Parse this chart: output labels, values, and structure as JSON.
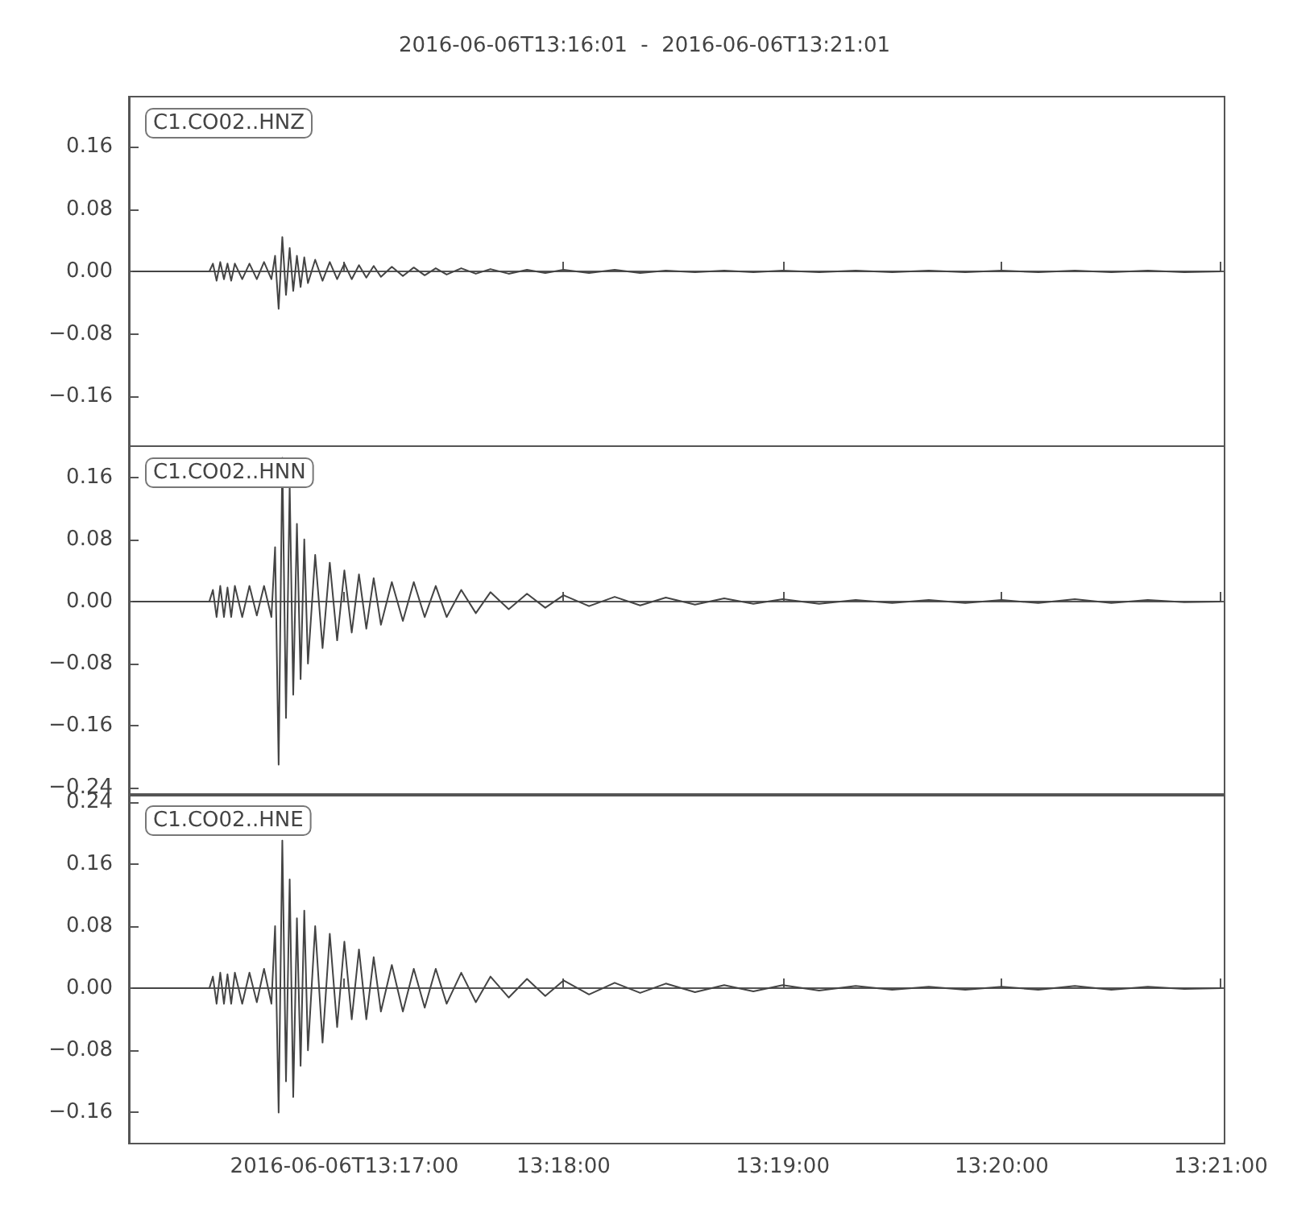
{
  "chart_data": [
    {
      "type": "line",
      "title": "2016-06-06T13:16:01  -  2016-06-06T13:21:01",
      "annotations": [
        "C1.CO02..HNZ"
      ],
      "marker": "none",
      "tick_labels": "y",
      "xlim": [
        13.26694,
        13.35028
      ],
      "xticks": [
        {
          "value": 13.28333,
          "label": null
        },
        {
          "value": 13.3,
          "label": null
        },
        {
          "value": 13.31667,
          "label": null
        },
        {
          "value": 13.33333,
          "label": null
        },
        {
          "value": 13.35,
          "label": null
        }
      ],
      "ylim": [
        -0.224,
        0.224
      ],
      "yticks": [
        {
          "value": -0.16,
          "label": "−0.16"
        },
        {
          "value": -0.08,
          "label": "−0.08"
        },
        {
          "value": 0,
          "label": "0.00"
        },
        {
          "value": 0.08,
          "label": "0.08"
        },
        {
          "value": 0.16,
          "label": "0.16"
        }
      ],
      "x": [
        13.26722,
        13.27306,
        13.27333,
        13.27361,
        13.27389,
        13.27417,
        13.27444,
        13.27472,
        13.275,
        13.27556,
        13.27611,
        13.27667,
        13.27722,
        13.27778,
        13.27806,
        13.27833,
        13.27861,
        13.27889,
        13.27917,
        13.27944,
        13.27972,
        13.28,
        13.28028,
        13.28056,
        13.28111,
        13.28167,
        13.28222,
        13.28278,
        13.28333,
        13.28389,
        13.28444,
        13.285,
        13.28556,
        13.28611,
        13.28694,
        13.28778,
        13.28861,
        13.28944,
        13.29028,
        13.29111,
        13.29222,
        13.29333,
        13.29444,
        13.29583,
        13.29722,
        13.29861,
        13.3,
        13.30194,
        13.30389,
        13.30583,
        13.30778,
        13.31,
        13.31222,
        13.31444,
        13.31667,
        13.31944,
        13.32222,
        13.325,
        13.32778,
        13.33056,
        13.33333,
        13.33611,
        13.33889,
        13.34167,
        13.34444,
        13.34722,
        13.35
      ],
      "series": [
        {
          "color": "#444444",
          "values": [
            0,
            0,
            0.01,
            -0.012,
            0.012,
            -0.01,
            0.01,
            -0.012,
            0.01,
            -0.01,
            0.01,
            -0.01,
            0.012,
            -0.01,
            0.02,
            -0.048,
            0.044,
            -0.03,
            0.03,
            -0.025,
            0.02,
            -0.02,
            0.018,
            -0.015,
            0.015,
            -0.012,
            0.012,
            -0.01,
            0.01,
            -0.01,
            0.008,
            -0.008,
            0.007,
            -0.007,
            0.006,
            -0.006,
            0.005,
            -0.005,
            0.004,
            -0.004,
            0.004,
            -0.003,
            0.003,
            -0.003,
            0.002,
            -0.002,
            0.002,
            -0.002,
            0.002,
            -0.002,
            0.001,
            -0.001,
            0.001,
            -0.001,
            0.001,
            -0.001,
            0.001,
            -0.001,
            0.001,
            -0.001,
            0.001,
            -0.001,
            0.001,
            -0.001,
            0.001,
            -0.001,
            0
          ]
        }
      ]
    },
    {
      "type": "line",
      "annotations": [
        "C1.CO02..HNN"
      ],
      "marker": "none",
      "tick_labels": "y",
      "xlim": [
        13.26694,
        13.35028
      ],
      "xticks": [
        {
          "value": 13.28333,
          "label": null
        },
        {
          "value": 13.3,
          "label": null
        },
        {
          "value": 13.31667,
          "label": null
        },
        {
          "value": 13.33333,
          "label": null
        },
        {
          "value": 13.35,
          "label": null
        }
      ],
      "ylim": [
        -0.25,
        0.2
      ],
      "yticks": [
        {
          "value": -0.24,
          "label": "−0.24"
        },
        {
          "value": -0.16,
          "label": "−0.16"
        },
        {
          "value": -0.08,
          "label": "−0.08"
        },
        {
          "value": 0,
          "label": "0.00"
        },
        {
          "value": 0.08,
          "label": "0.08"
        },
        {
          "value": 0.16,
          "label": "0.16"
        }
      ],
      "x": [
        13.26722,
        13.27306,
        13.27333,
        13.27361,
        13.27389,
        13.27417,
        13.27444,
        13.27472,
        13.275,
        13.27556,
        13.27611,
        13.27667,
        13.27722,
        13.27778,
        13.27806,
        13.27833,
        13.27861,
        13.27889,
        13.27917,
        13.27944,
        13.27972,
        13.28,
        13.28028,
        13.28056,
        13.28111,
        13.28167,
        13.28222,
        13.28278,
        13.28333,
        13.28389,
        13.28444,
        13.285,
        13.28556,
        13.28611,
        13.28694,
        13.28778,
        13.28861,
        13.28944,
        13.29028,
        13.29111,
        13.29222,
        13.29333,
        13.29444,
        13.29583,
        13.29722,
        13.29861,
        13.3,
        13.30194,
        13.30389,
        13.30583,
        13.30778,
        13.31,
        13.31222,
        13.31444,
        13.31667,
        13.31944,
        13.32222,
        13.325,
        13.32778,
        13.33056,
        13.33333,
        13.33611,
        13.33889,
        13.34167,
        13.34444,
        13.34722,
        13.35
      ],
      "series": [
        {
          "color": "#444444",
          "values": [
            0,
            0,
            0.015,
            -0.02,
            0.02,
            -0.02,
            0.018,
            -0.02,
            0.02,
            -0.02,
            0.02,
            -0.018,
            0.02,
            -0.02,
            0.07,
            -0.21,
            0.185,
            -0.15,
            0.15,
            -0.12,
            0.1,
            -0.1,
            0.08,
            -0.08,
            0.06,
            -0.06,
            0.05,
            -0.05,
            0.04,
            -0.04,
            0.035,
            -0.035,
            0.03,
            -0.03,
            0.025,
            -0.025,
            0.025,
            -0.02,
            0.02,
            -0.02,
            0.015,
            -0.015,
            0.012,
            -0.01,
            0.01,
            -0.008,
            0.008,
            -0.006,
            0.006,
            -0.005,
            0.005,
            -0.004,
            0.004,
            -0.003,
            0.003,
            -0.003,
            0.002,
            -0.002,
            0.002,
            -0.002,
            0.002,
            -0.002,
            0.003,
            -0.002,
            0.002,
            -0.001,
            0
          ]
        }
      ]
    },
    {
      "type": "line",
      "annotations": [
        "C1.CO02..HNE"
      ],
      "marker": "none",
      "xlim": [
        13.26694,
        13.35028
      ],
      "xticks": [
        {
          "value": 13.28333,
          "label": "2016-06-06T13:17:00"
        },
        {
          "value": 13.3,
          "label": "13:18:00"
        },
        {
          "value": 13.31667,
          "label": "13:19:00"
        },
        {
          "value": 13.33333,
          "label": "13:20:00"
        },
        {
          "value": 13.35,
          "label": "13:21:00"
        }
      ],
      "ylim": [
        -0.2,
        0.25
      ],
      "yticks": [
        {
          "value": -0.16,
          "label": "−0.16"
        },
        {
          "value": -0.08,
          "label": "−0.08"
        },
        {
          "value": 0,
          "label": "0.00"
        },
        {
          "value": 0.08,
          "label": "0.08"
        },
        {
          "value": 0.16,
          "label": "0.16"
        },
        {
          "value": 0.24,
          "label": "0.24"
        }
      ],
      "x": [
        13.26722,
        13.27306,
        13.27333,
        13.27361,
        13.27389,
        13.27417,
        13.27444,
        13.27472,
        13.275,
        13.27556,
        13.27611,
        13.27667,
        13.27722,
        13.27778,
        13.27806,
        13.27833,
        13.27861,
        13.27889,
        13.27917,
        13.27944,
        13.27972,
        13.28,
        13.28028,
        13.28056,
        13.28111,
        13.28167,
        13.28222,
        13.28278,
        13.28333,
        13.28389,
        13.28444,
        13.285,
        13.28556,
        13.28611,
        13.28694,
        13.28778,
        13.28861,
        13.28944,
        13.29028,
        13.29111,
        13.29222,
        13.29333,
        13.29444,
        13.29583,
        13.29722,
        13.29861,
        13.3,
        13.30194,
        13.30389,
        13.30583,
        13.30778,
        13.31,
        13.31222,
        13.31444,
        13.31667,
        13.31944,
        13.32222,
        13.325,
        13.32778,
        13.33056,
        13.33333,
        13.33611,
        13.33889,
        13.34167,
        13.34444,
        13.34722,
        13.35
      ],
      "series": [
        {
          "color": "#444444",
          "values": [
            0,
            0,
            0.015,
            -0.02,
            0.02,
            -0.02,
            0.018,
            -0.02,
            0.02,
            -0.02,
            0.02,
            -0.018,
            0.025,
            -0.02,
            0.08,
            -0.16,
            0.19,
            -0.12,
            0.14,
            -0.14,
            0.09,
            -0.1,
            0.1,
            -0.08,
            0.08,
            -0.07,
            0.07,
            -0.05,
            0.06,
            -0.04,
            0.05,
            -0.04,
            0.04,
            -0.03,
            0.03,
            -0.03,
            0.025,
            -0.025,
            0.025,
            -0.02,
            0.02,
            -0.018,
            0.015,
            -0.012,
            0.012,
            -0.01,
            0.01,
            -0.008,
            0.007,
            -0.006,
            0.006,
            -0.005,
            0.004,
            -0.004,
            0.004,
            -0.003,
            0.003,
            -0.002,
            0.002,
            -0.002,
            0.002,
            -0.002,
            0.003,
            -0.002,
            0.002,
            -0.001,
            0
          ]
        }
      ]
    }
  ]
}
